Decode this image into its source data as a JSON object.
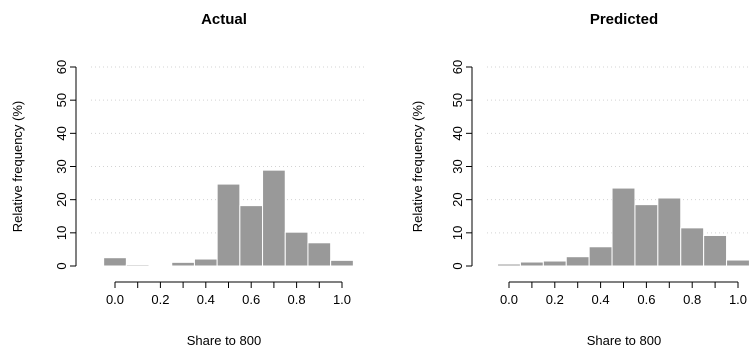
{
  "chart_data": [
    {
      "type": "bar",
      "title": "Actual",
      "xlabel": "Share to 800",
      "ylabel": "Relative frequency (%)",
      "ylim": [
        0,
        60
      ],
      "xlim": [
        0,
        1
      ],
      "x_ticks": [
        "0.0",
        "0.2",
        "0.4",
        "0.6",
        "0.8",
        "1.0"
      ],
      "y_ticks": [
        "0",
        "10",
        "20",
        "30",
        "40",
        "50",
        "60"
      ],
      "grid": "horizontal dotted",
      "bar_color": "#999999",
      "bins": [
        {
          "x0": -0.05,
          "x1": 0.05,
          "value": 2.5
        },
        {
          "x0": 0.05,
          "x1": 0.15,
          "value": 0.4
        },
        {
          "x0": 0.15,
          "x1": 0.25,
          "value": 0.2
        },
        {
          "x0": 0.25,
          "x1": 0.35,
          "value": 1.1
        },
        {
          "x0": 0.35,
          "x1": 0.45,
          "value": 2.1
        },
        {
          "x0": 0.45,
          "x1": 0.55,
          "value": 24.7
        },
        {
          "x0": 0.55,
          "x1": 0.65,
          "value": 18.2
        },
        {
          "x0": 0.65,
          "x1": 0.75,
          "value": 28.9
        },
        {
          "x0": 0.75,
          "x1": 0.85,
          "value": 10.2
        },
        {
          "x0": 0.85,
          "x1": 0.95,
          "value": 7.0
        },
        {
          "x0": 0.95,
          "x1": 1.05,
          "value": 1.7
        }
      ]
    },
    {
      "type": "bar",
      "title": "Predicted",
      "xlabel": "Share to 800",
      "ylabel": "Relative frequency (%)",
      "ylim": [
        0,
        60
      ],
      "xlim": [
        0,
        1
      ],
      "x_ticks": [
        "0.0",
        "0.2",
        "0.4",
        "0.6",
        "0.8",
        "1.0"
      ],
      "y_ticks": [
        "0",
        "10",
        "20",
        "30",
        "40",
        "50",
        "60"
      ],
      "grid": "horizontal dotted",
      "bar_color": "#999999",
      "bins": [
        {
          "x0": -0.05,
          "x1": 0.05,
          "value": 0.6
        },
        {
          "x0": 0.05,
          "x1": 0.15,
          "value": 1.2
        },
        {
          "x0": 0.15,
          "x1": 0.25,
          "value": 1.5
        },
        {
          "x0": 0.25,
          "x1": 0.35,
          "value": 2.8
        },
        {
          "x0": 0.35,
          "x1": 0.45,
          "value": 5.8
        },
        {
          "x0": 0.45,
          "x1": 0.55,
          "value": 23.5
        },
        {
          "x0": 0.55,
          "x1": 0.65,
          "value": 18.5
        },
        {
          "x0": 0.65,
          "x1": 0.75,
          "value": 20.5
        },
        {
          "x0": 0.75,
          "x1": 0.85,
          "value": 11.5
        },
        {
          "x0": 0.85,
          "x1": 0.95,
          "value": 9.2
        },
        {
          "x0": 0.95,
          "x1": 1.05,
          "value": 1.8
        }
      ]
    }
  ]
}
